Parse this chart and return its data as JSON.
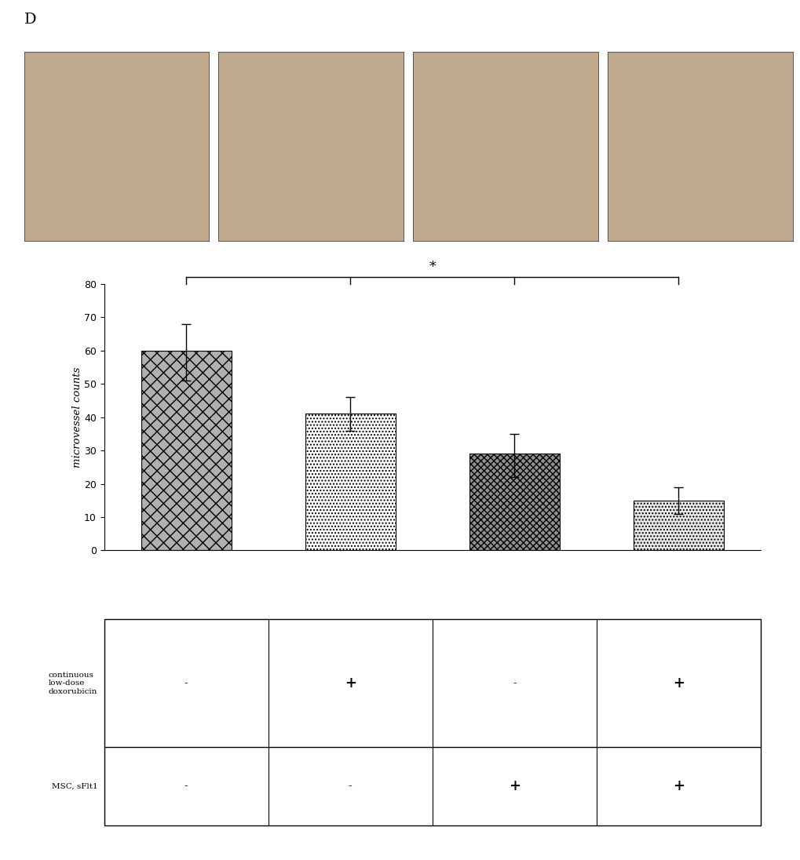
{
  "panel_label": "D",
  "bar_values": [
    60,
    41,
    29,
    15
  ],
  "bar_errors_upper": [
    8,
    5,
    6,
    4
  ],
  "bar_errors_lower": [
    9,
    5,
    7,
    4
  ],
  "bar_hatch": [
    "xx",
    "....",
    "xxxx",
    "...."
  ],
  "bar_facecolors": [
    "#b0b0b0",
    "#ffffff",
    "#909090",
    "#e8e8e8"
  ],
  "bar_edgecolor": "#000000",
  "ylabel": "microvessel counts",
  "ylim": [
    0,
    80
  ],
  "yticks": [
    0,
    10,
    20,
    30,
    40,
    50,
    60,
    70,
    80
  ],
  "bar_positions": [
    1,
    2,
    3,
    4
  ],
  "bar_width": 0.55,
  "sig_label": "*",
  "table_row1_label": "continuous\nlow-dose\ndoxorubicin",
  "table_row2_label": "MSC, sFlt1",
  "table_row1_values": [
    "-",
    "+",
    "-",
    "+"
  ],
  "table_row2_values": [
    "-",
    "-",
    "+",
    "+"
  ],
  "background_color": "#ffffff",
  "img_facecolor": "#c0aa90"
}
